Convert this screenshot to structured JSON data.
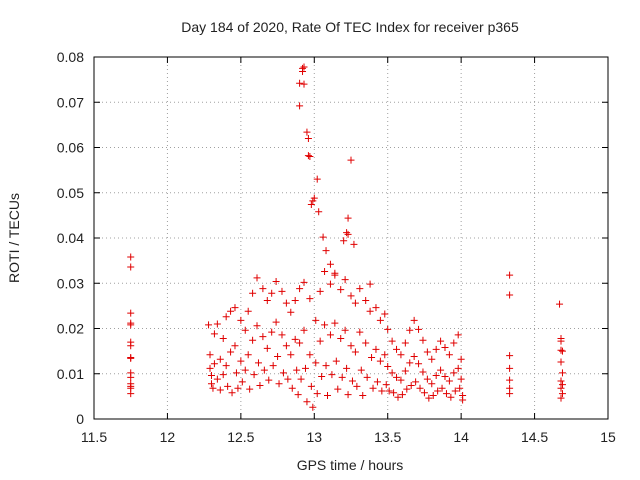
{
  "chart_data": {
    "type": "scatter",
    "title": "Day 184 of 2020, Rate Of TEC Index for receiver p365",
    "xlabel": "GPS time / hours",
    "ylabel": "ROTI / TECUs",
    "xlim": [
      11.5,
      15
    ],
    "ylim": [
      0,
      0.08
    ],
    "x_ticks": [
      11.5,
      12,
      12.5,
      13,
      13.5,
      14,
      14.5,
      15
    ],
    "x_tick_labels": [
      "11.5",
      "12",
      "12.5",
      "13",
      "13.5",
      "14",
      "14.5",
      "15"
    ],
    "y_ticks": [
      0,
      0.01,
      0.02,
      0.03,
      0.04,
      0.05,
      0.06,
      0.07,
      0.08
    ],
    "y_tick_labels": [
      "0",
      "0.01",
      "0.02",
      "0.03",
      "0.04",
      "0.05",
      "0.06",
      "0.07",
      "0.08"
    ],
    "grid": true,
    "marker": "plus",
    "marker_color": "#e00000",
    "points": [
      [
        11.75,
        0.0358
      ],
      [
        11.75,
        0.0336
      ],
      [
        11.75,
        0.0234
      ],
      [
        11.75,
        0.0212
      ],
      [
        11.75,
        0.0208
      ],
      [
        11.75,
        0.017
      ],
      [
        11.75,
        0.0162
      ],
      [
        11.75,
        0.0136
      ],
      [
        11.75,
        0.0134
      ],
      [
        11.75,
        0.0102
      ],
      [
        11.75,
        0.0092
      ],
      [
        11.75,
        0.0078
      ],
      [
        11.75,
        0.0072
      ],
      [
        11.75,
        0.0068
      ],
      [
        11.75,
        0.0056
      ],
      [
        12.28,
        0.0208
      ],
      [
        12.29,
        0.0142
      ],
      [
        12.29,
        0.0112
      ],
      [
        12.3,
        0.0096
      ],
      [
        12.3,
        0.0078
      ],
      [
        12.31,
        0.0068
      ],
      [
        12.32,
        0.0188
      ],
      [
        12.32,
        0.0122
      ],
      [
        12.34,
        0.021
      ],
      [
        12.34,
        0.0088
      ],
      [
        12.36,
        0.0132
      ],
      [
        12.36,
        0.0064
      ],
      [
        12.38,
        0.0178
      ],
      [
        12.38,
        0.0098
      ],
      [
        12.4,
        0.0226
      ],
      [
        12.4,
        0.0118
      ],
      [
        12.41,
        0.0072
      ],
      [
        12.43,
        0.0238
      ],
      [
        12.43,
        0.0148
      ],
      [
        12.44,
        0.0058
      ],
      [
        12.46,
        0.0246
      ],
      [
        12.46,
        0.0162
      ],
      [
        12.47,
        0.0102
      ],
      [
        12.48,
        0.0068
      ],
      [
        12.5,
        0.0218
      ],
      [
        12.5,
        0.0128
      ],
      [
        12.51,
        0.0082
      ],
      [
        12.53,
        0.0196
      ],
      [
        12.53,
        0.0108
      ],
      [
        12.55,
        0.0238
      ],
      [
        12.55,
        0.0142
      ],
      [
        12.56,
        0.0066
      ],
      [
        12.58,
        0.0278
      ],
      [
        12.58,
        0.0174
      ],
      [
        12.59,
        0.0098
      ],
      [
        12.61,
        0.0312
      ],
      [
        12.61,
        0.0206
      ],
      [
        12.62,
        0.0124
      ],
      [
        12.63,
        0.0074
      ],
      [
        12.65,
        0.0288
      ],
      [
        12.65,
        0.0182
      ],
      [
        12.66,
        0.0108
      ],
      [
        12.68,
        0.0262
      ],
      [
        12.68,
        0.0156
      ],
      [
        12.69,
        0.0086
      ],
      [
        12.71,
        0.0278
      ],
      [
        12.71,
        0.0192
      ],
      [
        12.72,
        0.0118
      ],
      [
        12.74,
        0.0304
      ],
      [
        12.74,
        0.0214
      ],
      [
        12.75,
        0.0138
      ],
      [
        12.76,
        0.0078
      ],
      [
        12.78,
        0.0282
      ],
      [
        12.78,
        0.0186
      ],
      [
        12.79,
        0.0102
      ],
      [
        12.81,
        0.0256
      ],
      [
        12.81,
        0.0162
      ],
      [
        12.82,
        0.0088
      ],
      [
        12.84,
        0.0236
      ],
      [
        12.84,
        0.0142
      ],
      [
        12.85,
        0.0068
      ],
      [
        12.87,
        0.0262
      ],
      [
        12.87,
        0.0176
      ],
      [
        12.88,
        0.0108
      ],
      [
        12.89,
        0.0054
      ],
      [
        12.9,
        0.0692
      ],
      [
        12.9,
        0.0742
      ],
      [
        12.92,
        0.0768
      ],
      [
        12.92,
        0.0775
      ],
      [
        12.93,
        0.0778
      ],
      [
        12.93,
        0.074
      ],
      [
        12.95,
        0.0634
      ],
      [
        12.96,
        0.062
      ],
      [
        12.96,
        0.0582
      ],
      [
        12.97,
        0.058
      ],
      [
        12.98,
        0.0474
      ],
      [
        12.99,
        0.0482
      ],
      [
        13.0,
        0.0488
      ],
      [
        13.02,
        0.053
      ],
      [
        13.03,
        0.0458
      ],
      [
        13.06,
        0.0402
      ],
      [
        13.08,
        0.0372
      ],
      [
        13.11,
        0.0342
      ],
      [
        13.14,
        0.0318
      ],
      [
        13.2,
        0.0394
      ],
      [
        13.22,
        0.0412
      ],
      [
        13.23,
        0.0408
      ],
      [
        13.23,
        0.0444
      ],
      [
        13.25,
        0.0572
      ],
      [
        13.27,
        0.0386
      ],
      [
        12.9,
        0.0288
      ],
      [
        12.9,
        0.0168
      ],
      [
        12.91,
        0.0088
      ],
      [
        12.93,
        0.0302
      ],
      [
        12.93,
        0.0196
      ],
      [
        12.94,
        0.0112
      ],
      [
        12.95,
        0.0038
      ],
      [
        12.97,
        0.0266
      ],
      [
        12.97,
        0.0142
      ],
      [
        12.98,
        0.0072
      ],
      [
        12.99,
        0.0026
      ],
      [
        13.01,
        0.0218
      ],
      [
        13.01,
        0.0124
      ],
      [
        13.02,
        0.0056
      ],
      [
        13.04,
        0.0282
      ],
      [
        13.04,
        0.0172
      ],
      [
        13.05,
        0.0094
      ],
      [
        13.07,
        0.0326
      ],
      [
        13.07,
        0.0208
      ],
      [
        13.08,
        0.0118
      ],
      [
        13.09,
        0.0052
      ],
      [
        13.11,
        0.0298
      ],
      [
        13.11,
        0.0186
      ],
      [
        13.12,
        0.0098
      ],
      [
        13.14,
        0.0322
      ],
      [
        13.14,
        0.0212
      ],
      [
        13.15,
        0.0128
      ],
      [
        13.16,
        0.0066
      ],
      [
        13.18,
        0.0286
      ],
      [
        13.18,
        0.0178
      ],
      [
        13.19,
        0.0092
      ],
      [
        13.21,
        0.0308
      ],
      [
        13.21,
        0.0196
      ],
      [
        13.22,
        0.0112
      ],
      [
        13.23,
        0.0054
      ],
      [
        13.25,
        0.0272
      ],
      [
        13.25,
        0.0162
      ],
      [
        13.26,
        0.0084
      ],
      [
        13.28,
        0.0256
      ],
      [
        13.28,
        0.0148
      ],
      [
        13.29,
        0.0072
      ],
      [
        13.31,
        0.0288
      ],
      [
        13.31,
        0.0192
      ],
      [
        13.32,
        0.0108
      ],
      [
        13.33,
        0.0052
      ],
      [
        13.35,
        0.0262
      ],
      [
        13.35,
        0.0168
      ],
      [
        13.36,
        0.0092
      ],
      [
        13.38,
        0.0298
      ],
      [
        13.38,
        0.0238
      ],
      [
        13.39,
        0.0136
      ],
      [
        13.4,
        0.0068
      ],
      [
        13.42,
        0.0246
      ],
      [
        13.42,
        0.0154
      ],
      [
        13.43,
        0.0082
      ],
      [
        13.45,
        0.0218
      ],
      [
        13.45,
        0.0128
      ],
      [
        13.46,
        0.0062
      ],
      [
        13.48,
        0.0232
      ],
      [
        13.48,
        0.0142
      ],
      [
        13.49,
        0.0076
      ],
      [
        13.5,
        0.0198
      ],
      [
        13.5,
        0.0116
      ],
      [
        13.51,
        0.0062
      ],
      [
        13.53,
        0.0172
      ],
      [
        13.53,
        0.0102
      ],
      [
        13.54,
        0.0058
      ],
      [
        13.56,
        0.0154
      ],
      [
        13.56,
        0.0092
      ],
      [
        13.57,
        0.0048
      ],
      [
        13.59,
        0.0142
      ],
      [
        13.59,
        0.0086
      ],
      [
        13.6,
        0.0054
      ],
      [
        13.62,
        0.0168
      ],
      [
        13.62,
        0.0106
      ],
      [
        13.63,
        0.0066
      ],
      [
        13.65,
        0.0196
      ],
      [
        13.65,
        0.0124
      ],
      [
        13.66,
        0.0074
      ],
      [
        13.68,
        0.0218
      ],
      [
        13.68,
        0.0138
      ],
      [
        13.69,
        0.0082
      ],
      [
        13.71,
        0.0198
      ],
      [
        13.71,
        0.0122
      ],
      [
        13.72,
        0.0068
      ],
      [
        13.74,
        0.0174
      ],
      [
        13.74,
        0.0104
      ],
      [
        13.75,
        0.0058
      ],
      [
        13.77,
        0.0148
      ],
      [
        13.77,
        0.0088
      ],
      [
        13.78,
        0.0046
      ],
      [
        13.8,
        0.0132
      ],
      [
        13.8,
        0.0078
      ],
      [
        13.81,
        0.0052
      ],
      [
        13.83,
        0.0154
      ],
      [
        13.83,
        0.0096
      ],
      [
        13.84,
        0.0062
      ],
      [
        13.86,
        0.0172
      ],
      [
        13.86,
        0.0108
      ],
      [
        13.87,
        0.0068
      ],
      [
        13.89,
        0.0158
      ],
      [
        13.89,
        0.0094
      ],
      [
        13.9,
        0.0056
      ],
      [
        13.92,
        0.0142
      ],
      [
        13.92,
        0.0084
      ],
      [
        13.93,
        0.0048
      ],
      [
        13.95,
        0.0168
      ],
      [
        13.95,
        0.0102
      ],
      [
        13.96,
        0.0062
      ],
      [
        13.98,
        0.0186
      ],
      [
        13.98,
        0.0112
      ],
      [
        13.99,
        0.0068
      ],
      [
        14.0,
        0.0132
      ],
      [
        14.0,
        0.0088
      ],
      [
        14.01,
        0.0052
      ],
      [
        14.01,
        0.0042
      ],
      [
        14.33,
        0.0318
      ],
      [
        14.33,
        0.0274
      ],
      [
        14.33,
        0.014
      ],
      [
        14.33,
        0.0112
      ],
      [
        14.33,
        0.0086
      ],
      [
        14.33,
        0.0068
      ],
      [
        14.33,
        0.0056
      ],
      [
        14.67,
        0.0254
      ],
      [
        14.68,
        0.0178
      ],
      [
        14.68,
        0.0172
      ],
      [
        14.68,
        0.0152
      ],
      [
        14.69,
        0.015
      ],
      [
        14.68,
        0.0126
      ],
      [
        14.69,
        0.0102
      ],
      [
        14.68,
        0.0084
      ],
      [
        14.69,
        0.0076
      ],
      [
        14.68,
        0.0068
      ],
      [
        14.69,
        0.0056
      ],
      [
        14.68,
        0.0046
      ]
    ]
  }
}
